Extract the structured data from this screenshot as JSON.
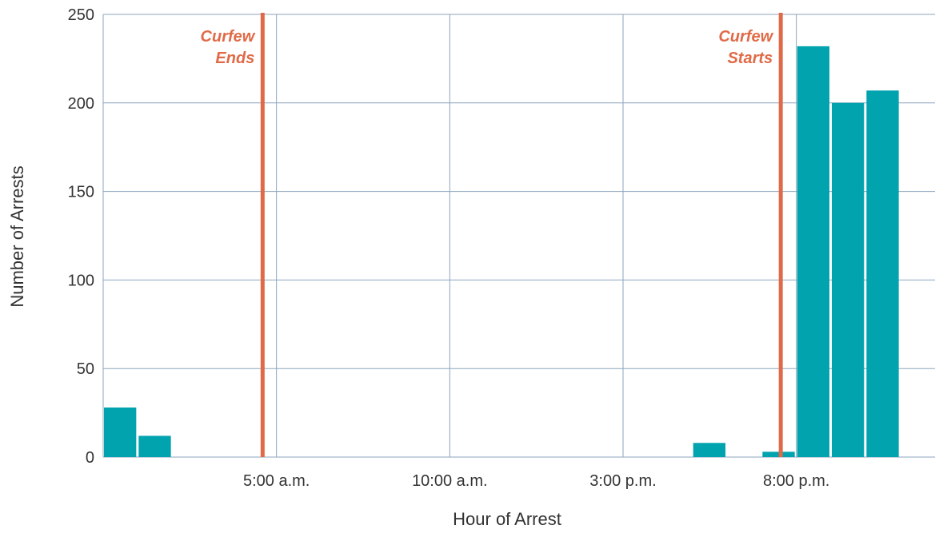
{
  "chart_data": {
    "type": "bar",
    "xlabel": "Hour of Arrest",
    "ylabel": "Number of Arrests",
    "ylim": [
      0,
      250
    ],
    "yticks": [
      0,
      50,
      100,
      150,
      200,
      250
    ],
    "x_tick_labels": [
      {
        "hour": 5,
        "label": "5:00 a.m."
      },
      {
        "hour": 10,
        "label": "10:00 a.m."
      },
      {
        "hour": 15,
        "label": "3:00 p.m."
      },
      {
        "hour": 20,
        "label": "8:00 p.m."
      }
    ],
    "x_range_hours": [
      0,
      24
    ],
    "grid": true,
    "bars": [
      {
        "hour": 0,
        "value": 28
      },
      {
        "hour": 1,
        "value": 12
      },
      {
        "hour": 2,
        "value": 0
      },
      {
        "hour": 3,
        "value": 0
      },
      {
        "hour": 4,
        "value": 0
      },
      {
        "hour": 5,
        "value": 0
      },
      {
        "hour": 6,
        "value": 0
      },
      {
        "hour": 7,
        "value": 0
      },
      {
        "hour": 8,
        "value": 0
      },
      {
        "hour": 9,
        "value": 0
      },
      {
        "hour": 10,
        "value": 0
      },
      {
        "hour": 11,
        "value": 0
      },
      {
        "hour": 12,
        "value": 0
      },
      {
        "hour": 13,
        "value": 0
      },
      {
        "hour": 14,
        "value": 0
      },
      {
        "hour": 15,
        "value": 0
      },
      {
        "hour": 16,
        "value": 0
      },
      {
        "hour": 17,
        "value": 8
      },
      {
        "hour": 18,
        "value": 0
      },
      {
        "hour": 19,
        "value": 3
      },
      {
        "hour": 20,
        "value": 232
      },
      {
        "hour": 21,
        "value": 200
      },
      {
        "hour": 22,
        "value": 207
      },
      {
        "hour": 23,
        "value": 0
      }
    ],
    "annotations": [
      {
        "hour": 4.6,
        "text_lines": [
          "Curfew",
          "Ends"
        ]
      },
      {
        "hour": 19.55,
        "text_lines": [
          "Curfew",
          "Starts"
        ]
      }
    ],
    "colors": {
      "bar": "#00A3AE",
      "curfew_line": "#E06A47",
      "curfew_text": "#E06A47",
      "grid": "#8CA6BE"
    }
  }
}
